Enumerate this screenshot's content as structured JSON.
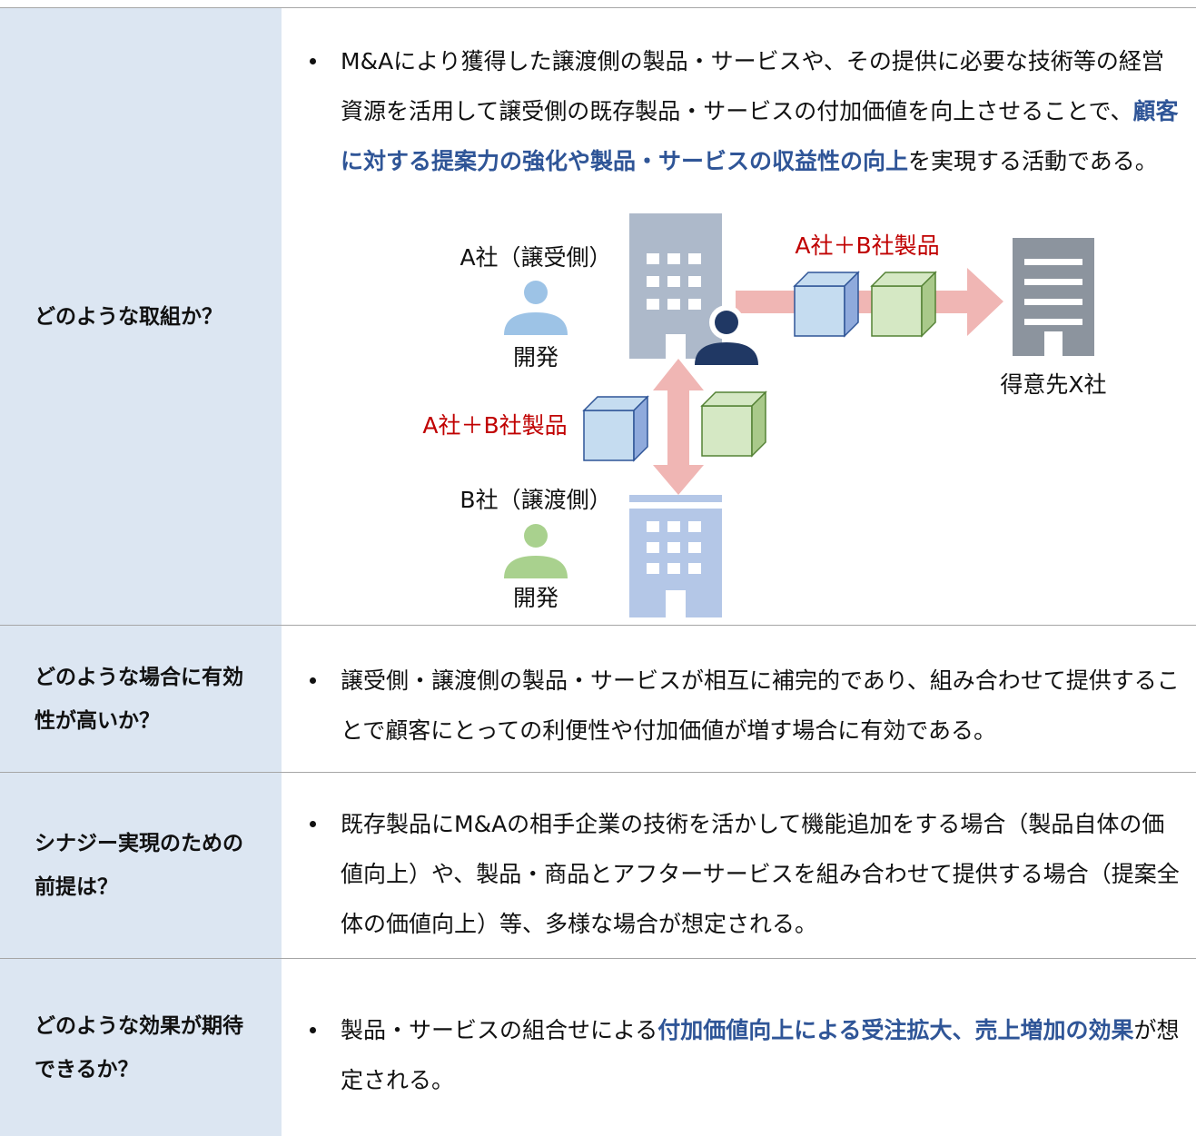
{
  "rows": [
    {
      "label": "どのような取組か？",
      "content": [
        {
          "text": "M&Aにより獲得した譲渡側の製品・サービスや、その提供に必要な技術等の経営資源を活用して譲受側の既存製品・サービスの付加価値を向上させることで、"
        },
        {
          "text": "顧客に対する提案力の強化や製品・サービスの収益性の向上",
          "highlight": true
        },
        {
          "text": "を実現する活動である。"
        }
      ]
    },
    {
      "label": "どのような場合に有効性が高いか？",
      "content": [
        {
          "text": "譲受側・譲渡側の製品・サービスが相互に補完的であり、組み合わせて提供することで顧客にとっての利便性や付加価値が増す場合に有効である。"
        }
      ]
    },
    {
      "label": "シナジー実現のための前提は？",
      "content": [
        {
          "text": "既存製品にM&Aの相手企業の技術を活かして機能追加をする場合（製品自体の価値向上）や、製品・商品とアフターサービスを組み合わせて提供する場合（提案全体の価値向上）等、多様な場合が想定される。"
        }
      ]
    },
    {
      "label": "どのような効果が期待できるか？",
      "content": [
        {
          "text": "製品・サービスの組合せによる"
        },
        {
          "text": "付加価値向上による受注拡大、売上増加の効果",
          "highlight": true
        },
        {
          "text": "が想定される。"
        }
      ]
    }
  ],
  "diagram": {
    "acquirer": "A社（譲受側）",
    "acquirer_team": "開発",
    "product_top": "A社＋B社製品",
    "customer": "得意先X社",
    "product_left": "A社＋B社製品",
    "seller": "B社（譲渡側）",
    "seller_team": "開発"
  }
}
